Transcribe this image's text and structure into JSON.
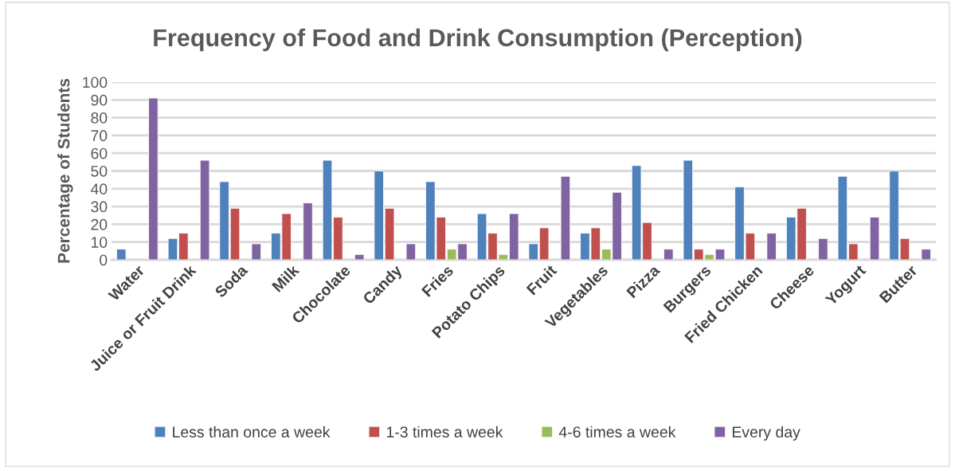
{
  "chart_data": {
    "type": "bar",
    "title": "Frequency of Food and Drink Consumption (Perception)",
    "ylabel": "Percentage of Students",
    "categories": [
      "Water",
      "Juice or Fruit Drink",
      "Soda",
      "Milk",
      "Chocolate",
      "Candy",
      "Fries",
      "Potato Chips",
      "Fruit",
      "Vegetables",
      "Pizza",
      "Burgers",
      "Fried Chicken",
      "Cheese",
      "Yogurt",
      "Butter"
    ],
    "series": [
      {
        "name": "Less than once a week",
        "color": "#4f81bd",
        "values": [
          6,
          12,
          44,
          15,
          56,
          50,
          44,
          26,
          9,
          15,
          53,
          56,
          41,
          24,
          47,
          50
        ]
      },
      {
        "name": "1-3 times a week",
        "color": "#c0504d",
        "values": [
          null,
          15,
          29,
          26,
          24,
          29,
          24,
          15,
          18,
          18,
          21,
          6,
          15,
          29,
          9,
          12
        ]
      },
      {
        "name": "4-6 times a week",
        "color": "#9bbb59",
        "values": [
          null,
          null,
          null,
          null,
          null,
          null,
          6,
          3,
          null,
          6,
          null,
          3,
          null,
          null,
          null,
          null
        ]
      },
      {
        "name": "Every day",
        "color": "#8064a2",
        "values": [
          91,
          56,
          9,
          32,
          3,
          9,
          9,
          26,
          47,
          38,
          6,
          6,
          15,
          12,
          24,
          6
        ]
      }
    ],
    "ylim": [
      0,
      100
    ],
    "yticks": [
      0,
      10,
      20,
      30,
      40,
      50,
      60,
      70,
      80,
      90,
      100
    ],
    "grid": "y",
    "legend": "bottom"
  }
}
